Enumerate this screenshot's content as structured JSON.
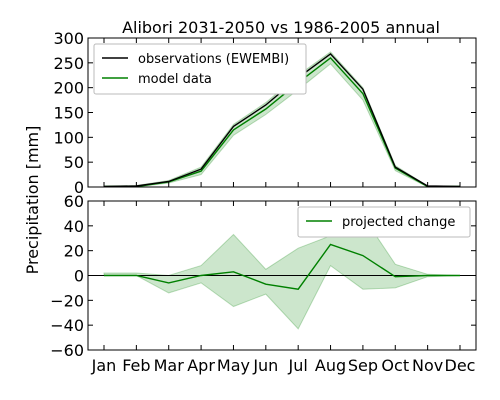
{
  "chart_data": [
    {
      "type": "line",
      "title": "Alibori 2031-2050 vs 1986-2005 annual",
      "ylabel": "Precipitation [mm]",
      "categories": [
        "Jan",
        "Feb",
        "Mar",
        "Apr",
        "May",
        "Jun",
        "Jul",
        "Aug",
        "Sep",
        "Oct",
        "Nov",
        "Dec"
      ],
      "ylim": [
        0,
        300
      ],
      "yticks": [
        0,
        50,
        100,
        150,
        200,
        250,
        300
      ],
      "legend": "top-left",
      "grid": false,
      "series": [
        {
          "name": "observations (EWEMBI)",
          "color": "#000000",
          "values": [
            1,
            2,
            11,
            36,
            122,
            165,
            220,
            268,
            197,
            40,
            2,
            1
          ]
        },
        {
          "name": "model data",
          "color": "#008000",
          "values": [
            1,
            1,
            10,
            32,
            115,
            157,
            210,
            260,
            188,
            38,
            1,
            1
          ],
          "band_low": [
            0,
            0,
            8,
            25,
            104,
            146,
            196,
            248,
            175,
            33,
            0,
            0
          ],
          "band_high": [
            2,
            3,
            13,
            40,
            126,
            170,
            225,
            272,
            200,
            43,
            2,
            2
          ]
        }
      ]
    },
    {
      "type": "line",
      "categories": [
        "Jan",
        "Feb",
        "Mar",
        "Apr",
        "May",
        "Jun",
        "Jul",
        "Aug",
        "Sep",
        "Oct",
        "Nov",
        "Dec"
      ],
      "ylim": [
        -60,
        60
      ],
      "yticks": [
        -60,
        -40,
        -20,
        0,
        20,
        40,
        60
      ],
      "legend": "top-right",
      "grid": false,
      "zero_line": true,
      "series": [
        {
          "name": "projected change",
          "color": "#008000",
          "values": [
            0,
            0,
            -6,
            0,
            3,
            -7,
            -11,
            25,
            16,
            -1,
            0,
            0
          ],
          "band_low": [
            0,
            0,
            -14,
            -6,
            -25,
            -15,
            -43,
            8,
            -11,
            -10,
            -1,
            0
          ],
          "band_high": [
            2,
            2,
            0,
            8,
            33,
            5,
            22,
            32,
            48,
            9,
            1,
            0
          ]
        }
      ]
    }
  ]
}
